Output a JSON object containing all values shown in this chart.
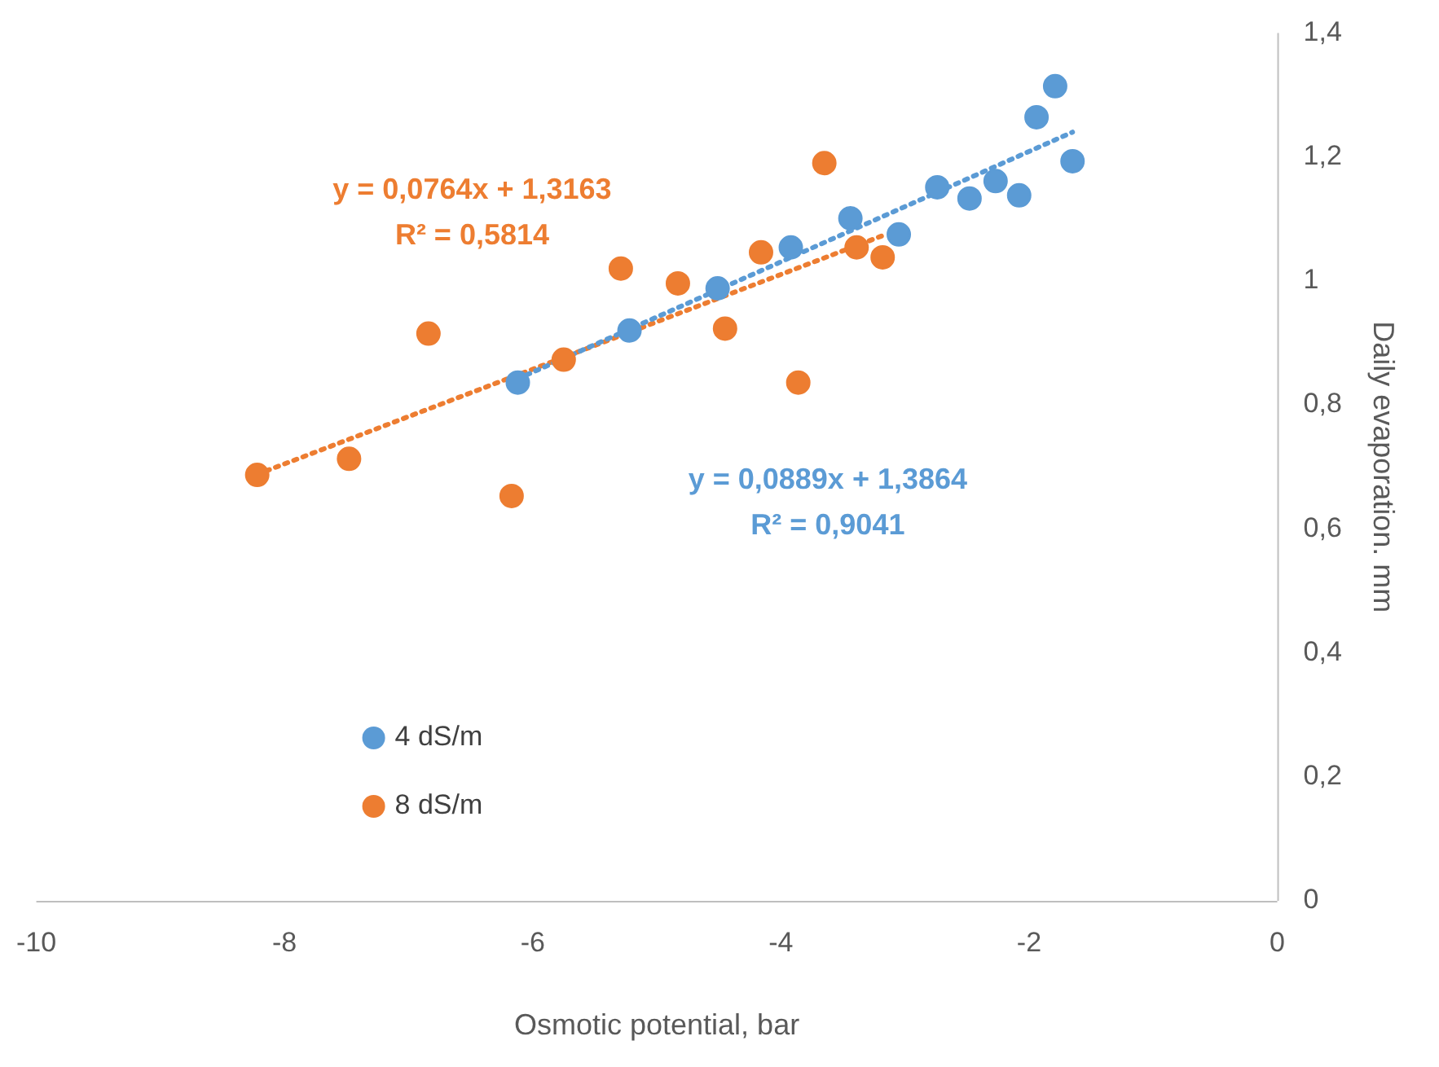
{
  "chart_data": {
    "type": "scatter",
    "xlabel": "Osmotic potential, bar",
    "ylabel": "Daily evaporation. mm",
    "xlim": [
      -10,
      0
    ],
    "xticks": [
      -10,
      -8,
      -6,
      -4,
      -2,
      0
    ],
    "ylim": [
      0,
      1.4
    ],
    "yticks": [
      0,
      {
        "value": 0.2,
        "label": "0,2"
      },
      {
        "value": 0.4,
        "label": "0,4"
      },
      {
        "value": 0.6,
        "label": "0,6"
      },
      {
        "value": 0.8,
        "label": "0,8"
      },
      1,
      {
        "value": 1.2,
        "label": "1,2"
      },
      {
        "value": 1.4,
        "label": "1,4"
      }
    ],
    "grid": false,
    "legend": "bottom left",
    "marker": "circle",
    "series": [
      {
        "name": "4 dS/m",
        "color": "#5b9bd5",
        "x": [
          -6.12,
          -5.22,
          -4.51,
          -3.92,
          -3.44,
          -3.05,
          -2.74,
          -2.48,
          -2.27,
          -2.08,
          -1.94,
          -1.79,
          -1.65
        ],
        "values": [
          0.836,
          0.92,
          0.988,
          1.054,
          1.101,
          1.075,
          1.151,
          1.133,
          1.161,
          1.138,
          1.264,
          1.314,
          1.193
        ]
      },
      {
        "name": "8 dS/m",
        "color": "#ed7d31",
        "x": [
          -8.22,
          -7.48,
          -6.84,
          -6.17,
          -5.75,
          -5.29,
          -4.83,
          -4.45,
          -4.16,
          -3.86,
          -3.65,
          -3.39,
          -3.18
        ],
        "values": [
          0.687,
          0.713,
          0.915,
          0.653,
          0.873,
          1.02,
          0.996,
          0.923,
          1.046,
          0.836,
          1.19,
          1.054,
          1.038
        ]
      },
      {
        "type": "line",
        "color": "#5b9bd5",
        "line_style": "dotted",
        "marker": "none",
        "x": [
          -6.12,
          -1.65
        ],
        "values": [
          0.842,
          1.24
        ]
      },
      {
        "type": "line",
        "color": "#ed7d31",
        "line_style": "dotted",
        "marker": "none",
        "x": [
          -8.22,
          -3.18
        ],
        "values": [
          0.688,
          1.073
        ]
      }
    ],
    "annotations": [
      "y = 0,0889x + 1,3864",
      "R² = 0,9041",
      "y = 0,0764x + 1,3163",
      "R² = 0,5814"
    ]
  }
}
